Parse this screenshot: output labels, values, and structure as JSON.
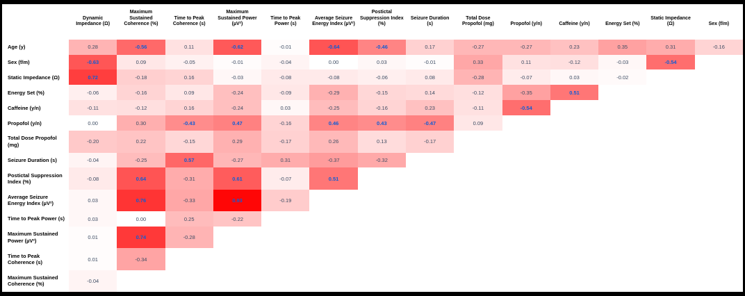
{
  "colors": {
    "heat_base": "#ff0000",
    "significant_text": "#0f5cd5",
    "normal_text": "#3d4c63",
    "header_text": "#000000",
    "frame": "#000000"
  },
  "significance_threshold": 0.43,
  "chart_data": {
    "type": "heatmap",
    "title": "",
    "legend_position": "none",
    "value_range": [
      -1,
      1
    ],
    "columns": [
      "Dynamic Impedance (Ω)",
      "Maximum Sustained Coherence (%)",
      "Time to Peak Coherence (s)",
      "Maximum Sustained Power (µV²)",
      "Time to Peak Power (s)",
      "Average Seizure Energy Index (µV²)",
      "Postictal Suppression Index (%)",
      "Seizure Duration (s)",
      "Total Dose Propofol (mg)",
      "Propofol (y/n)",
      "Caffeine (y/n)",
      "Energy Set (%)",
      "Static Impedance (Ω)",
      "Sex (f/m)"
    ],
    "rows": [
      {
        "label": "Age (y)",
        "values": [
          0.28,
          -0.56,
          0.11,
          -0.62,
          -0.01,
          -0.64,
          -0.46,
          0.17,
          -0.27,
          -0.27,
          0.23,
          0.35,
          0.31,
          -0.16
        ]
      },
      {
        "label": "Sex (f/m)",
        "values": [
          -0.63,
          0.09,
          -0.05,
          -0.01,
          -0.04,
          0.0,
          0.03,
          -0.01,
          0.33,
          0.11,
          -0.12,
          -0.03,
          -0.54
        ]
      },
      {
        "label": "Static Impedance (Ω)",
        "values": [
          0.72,
          -0.18,
          0.16,
          -0.03,
          -0.08,
          -0.08,
          -0.06,
          0.08,
          -0.28,
          -0.07,
          0.03,
          -0.02
        ]
      },
      {
        "label": "Energy Set (%)",
        "values": [
          -0.06,
          -0.16,
          0.09,
          -0.24,
          -0.09,
          -0.29,
          -0.15,
          0.14,
          -0.12,
          -0.35,
          0.51
        ]
      },
      {
        "label": "Caffeine (y/n)",
        "values": [
          -0.11,
          -0.12,
          0.16,
          -0.24,
          0.03,
          -0.25,
          -0.16,
          0.23,
          -0.11,
          -0.54
        ]
      },
      {
        "label": "Propofol (y/n)",
        "values": [
          0.0,
          0.3,
          -0.43,
          0.47,
          -0.16,
          0.46,
          0.43,
          -0.47,
          0.09
        ]
      },
      {
        "label": "Total Dose Propofol (mg)",
        "values": [
          -0.2,
          0.22,
          -0.15,
          0.29,
          -0.17,
          0.26,
          0.13,
          -0.17
        ]
      },
      {
        "label": "Seizure Duration (s)",
        "values": [
          -0.04,
          -0.25,
          0.57,
          -0.27,
          0.31,
          -0.37,
          -0.32
        ]
      },
      {
        "label": "Postictal Suppression Index (%)",
        "values": [
          -0.08,
          0.64,
          -0.31,
          0.61,
          -0.07,
          0.51
        ]
      },
      {
        "label": "Average Seizure Energy Index (µV²)",
        "values": [
          0.03,
          0.76,
          -0.33,
          0.93,
          -0.19
        ]
      },
      {
        "label": "Time to Peak Power (s)",
        "values": [
          0.03,
          0.0,
          0.25,
          -0.22
        ]
      },
      {
        "label": "Maximum Sustained Power (µV²)",
        "values": [
          0.01,
          0.74,
          -0.28
        ]
      },
      {
        "label": "Time to Peak Coherence (s)",
        "values": [
          0.01,
          -0.34
        ]
      },
      {
        "label": "Maximum Sustained Coherence (%)",
        "values": [
          -0.04
        ]
      }
    ]
  }
}
